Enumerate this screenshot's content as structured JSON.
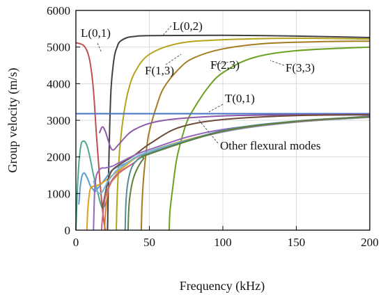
{
  "chart_data": {
    "type": "line",
    "title": "",
    "xlabel": "Frequency (kHz)",
    "ylabel": "Group velocity (m/s)",
    "xlim": [
      0,
      200
    ],
    "ylim": [
      0,
      6000
    ],
    "xticks": [
      0,
      50,
      100,
      150,
      200
    ],
    "yticks": [
      0,
      1000,
      2000,
      3000,
      4000,
      5000,
      6000
    ],
    "grid": true,
    "legend": "none",
    "series": [
      {
        "name": "L(0,1)",
        "color": "#c0504d",
        "x": [
          0,
          5,
          8,
          10,
          12,
          14,
          16,
          18,
          19,
          20
        ],
        "y": [
          5120,
          5050,
          4850,
          4500,
          3800,
          2600,
          1500,
          600,
          250,
          0
        ]
      },
      {
        "name": "L(0,2)",
        "color": "#404040",
        "x": [
          21.5,
          22,
          23,
          24,
          26,
          28,
          30,
          35,
          40,
          50,
          100,
          150,
          200
        ],
        "y": [
          0,
          1000,
          2800,
          3900,
          4700,
          5000,
          5150,
          5260,
          5290,
          5310,
          5320,
          5300,
          5260
        ]
      },
      {
        "name": "F(1,3)",
        "color": "#b5a31c",
        "x": [
          27.5,
          28,
          29,
          30,
          32,
          35,
          40,
          50,
          70,
          100,
          150,
          200
        ],
        "y": [
          0,
          800,
          1700,
          2300,
          3000,
          3700,
          4300,
          4800,
          5100,
          5200,
          5240,
          5220
        ]
      },
      {
        "name": "F(2,3)",
        "color": "#a57b22",
        "x": [
          44.5,
          45,
          46,
          48,
          50,
          55,
          60,
          70,
          80,
          100,
          130,
          170,
          200
        ],
        "y": [
          0,
          700,
          1400,
          2200,
          2700,
          3400,
          3900,
          4400,
          4700,
          4950,
          5100,
          5150,
          5160
        ]
      },
      {
        "name": "F(3,3)",
        "color": "#6aa121",
        "x": [
          63.5,
          64,
          66,
          68,
          70,
          75,
          80,
          90,
          100,
          120,
          150,
          200
        ],
        "y": [
          0,
          500,
          1200,
          1800,
          2200,
          2900,
          3300,
          3900,
          4300,
          4700,
          4900,
          5000
        ]
      },
      {
        "name": "T(0,1)",
        "color": "#4472c4",
        "x": [
          0,
          200
        ],
        "y": [
          3180,
          3180
        ]
      },
      {
        "name": "",
        "color": "#8e5aa8",
        "x": [
          16,
          18,
          20,
          22,
          24,
          26,
          30,
          40,
          60,
          100,
          150,
          200
        ],
        "y": [
          2650,
          2820,
          2700,
          2450,
          2230,
          2200,
          2380,
          2750,
          3000,
          3120,
          3150,
          3160
        ]
      },
      {
        "name": "",
        "color": "#4ba88d",
        "x": [
          0,
          1,
          2,
          3,
          4,
          6,
          8,
          10,
          12,
          15,
          18,
          21
        ],
        "y": [
          0,
          1100,
          1800,
          2200,
          2400,
          2420,
          2250,
          1900,
          1500,
          1000,
          600,
          800
        ]
      },
      {
        "name": "",
        "color": "#5b9bd5",
        "x": [
          2,
          3,
          4,
          5,
          6,
          8,
          10,
          12,
          13,
          15,
          20,
          25,
          35,
          50,
          100,
          150,
          200
        ],
        "y": [
          700,
          1200,
          1450,
          1550,
          1550,
          1400,
          1200,
          1100,
          1050,
          1150,
          1400,
          1650,
          1850,
          2150,
          2700,
          2950,
          3080
        ]
      },
      {
        "name": "",
        "color": "#e1a11b",
        "x": [
          7.5,
          8,
          9,
          10,
          12,
          14,
          16,
          20,
          30,
          50,
          100,
          150,
          200
        ],
        "y": [
          0,
          500,
          950,
          1150,
          1200,
          1210,
          1250,
          1350,
          1650,
          2150,
          2700,
          2950,
          3080
        ]
      },
      {
        "name": "",
        "color": "#6f4b3a",
        "x": [
          18,
          20,
          22,
          25,
          30,
          40,
          50,
          70,
          100,
          150,
          200
        ],
        "y": [
          600,
          1000,
          1400,
          1650,
          1800,
          2050,
          2350,
          2800,
          3020,
          3130,
          3150
        ]
      },
      {
        "name": "",
        "color": "#e4792a",
        "x": [
          19.5,
          20,
          21,
          22,
          24,
          27,
          30,
          40,
          50,
          100,
          150,
          200
        ],
        "y": [
          0,
          400,
          800,
          1100,
          1300,
          1450,
          1580,
          1850,
          2100,
          2700,
          2970,
          3100
        ]
      },
      {
        "name": "",
        "color": "#70b7d8",
        "x": [
          12,
          14,
          16,
          18,
          20,
          22,
          25,
          30,
          50,
          100,
          150,
          200
        ],
        "y": [
          1350,
          1100,
          1000,
          1050,
          1200,
          1350,
          1500,
          1700,
          2150,
          2680,
          2950,
          3080
        ]
      },
      {
        "name": "",
        "color": "#9467bd",
        "x": [
          12,
          12.5,
          13,
          14,
          16,
          18,
          20,
          25,
          30,
          50,
          100,
          200
        ],
        "y": [
          0,
          800,
          1200,
          1500,
          1650,
          1700,
          1700,
          1750,
          1850,
          2200,
          2750,
          3120
        ]
      },
      {
        "name": "",
        "color": "#c06a8c",
        "x": [
          17.5,
          18,
          20,
          23,
          26,
          30,
          40,
          50,
          100,
          150,
          200
        ],
        "y": [
          0,
          300,
          900,
          1250,
          1450,
          1600,
          1850,
          2100,
          2690,
          2960,
          3090
        ]
      },
      {
        "name": "",
        "color": "#4e8f98",
        "x": [
          33.5,
          34,
          35,
          37,
          40,
          45,
          50,
          100,
          150,
          200
        ],
        "y": [
          0,
          700,
          1200,
          1600,
          1850,
          2000,
          2100,
          2720,
          2980,
          3100
        ]
      },
      {
        "name": "",
        "color": "#5f7f3c",
        "x": [
          35.5,
          36,
          37,
          39,
          42,
          46,
          50,
          100,
          150,
          200
        ],
        "y": [
          0,
          600,
          1000,
          1400,
          1700,
          1950,
          2080,
          2700,
          2970,
          3095
        ]
      }
    ],
    "annotations": [
      {
        "text": "L(0,1)",
        "series": "L(0,1)"
      },
      {
        "text": "L(0,2)",
        "series": "L(0,2)"
      },
      {
        "text": "F(1,3)",
        "series": "F(1,3)"
      },
      {
        "text": "F(2,3)",
        "series": "F(2,3)"
      },
      {
        "text": "F(3,3)",
        "series": "F(3,3)"
      },
      {
        "text": "T(0,1)",
        "series": "T(0,1)"
      },
      {
        "text": "Other flexural modes",
        "series": ""
      }
    ]
  }
}
